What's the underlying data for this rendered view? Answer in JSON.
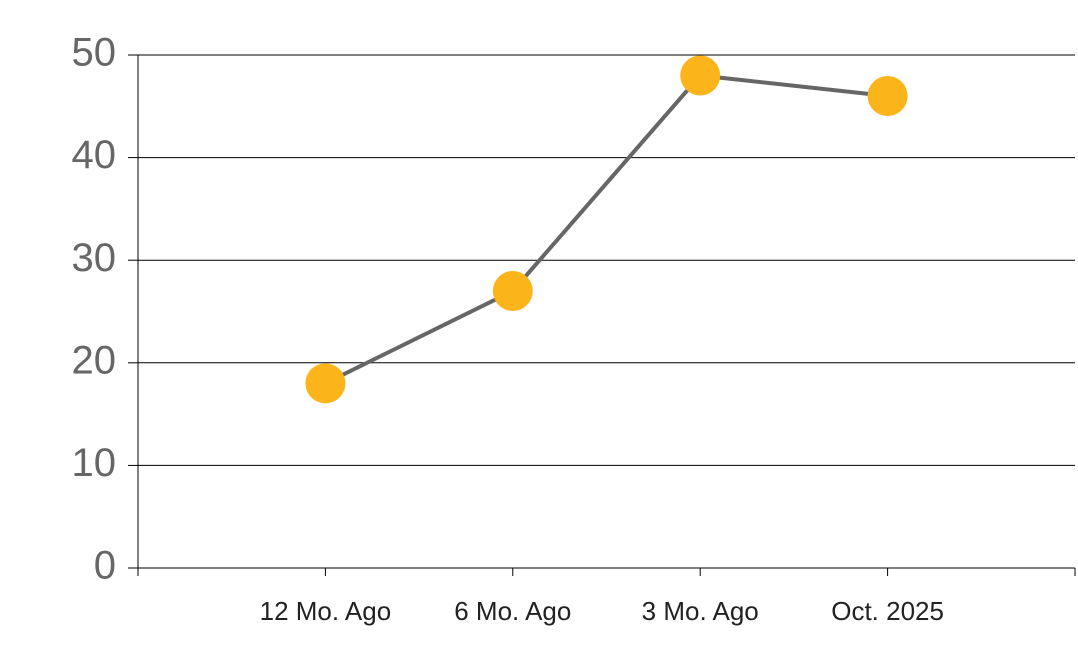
{
  "chart_data": {
    "type": "line",
    "categories": [
      "12 Mo. Ago",
      "6 Mo. Ago",
      "3 Mo. Ago",
      "Oct. 2025"
    ],
    "series": [
      {
        "values": [
          18,
          27,
          48,
          46
        ],
        "color": "#666666",
        "marker_color": "#fbb41a"
      }
    ],
    "ylim": [
      0,
      50
    ],
    "yticks": [
      0,
      10,
      20,
      30,
      40,
      50
    ],
    "grid": true
  }
}
